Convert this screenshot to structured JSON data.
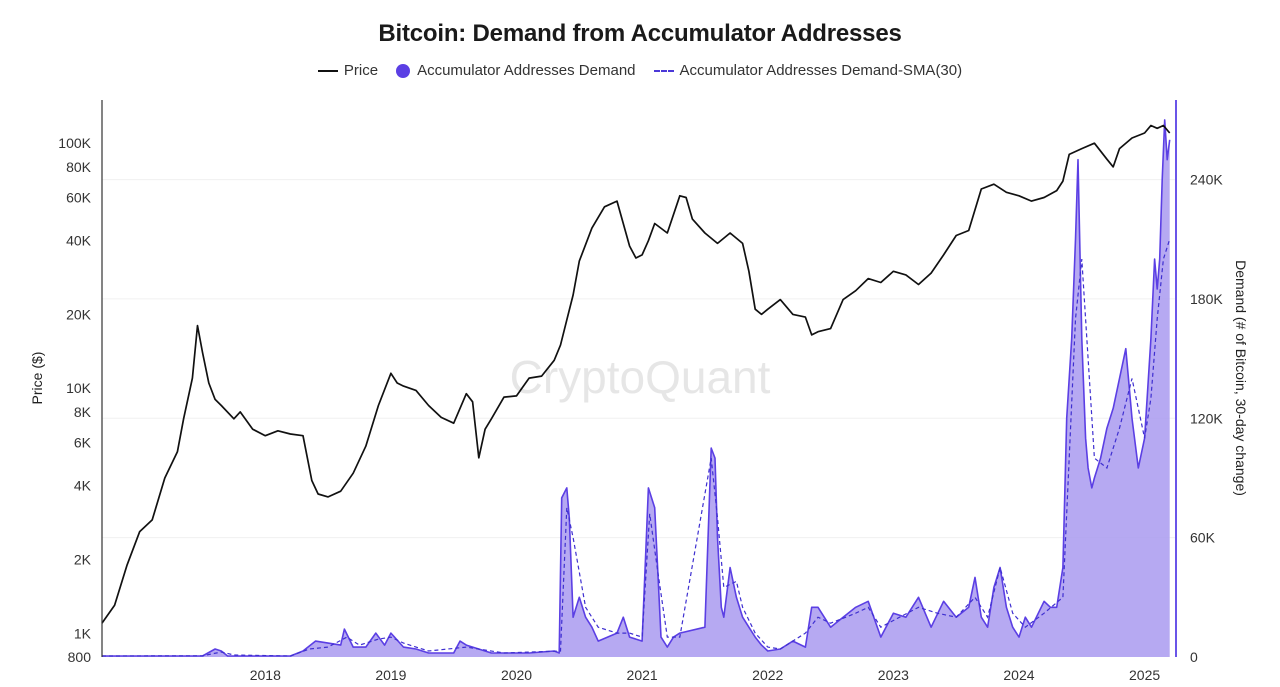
{
  "chart_data": {
    "type": "line",
    "title": "Bitcoin: Demand from Accumulator Addresses",
    "watermark": "CryptoQuant",
    "legend": [
      {
        "name": "Price",
        "style": "solid-line",
        "color": "#111111"
      },
      {
        "name": "Accumulator Addresses Demand",
        "style": "filled-area",
        "color": "#5b3fe4"
      },
      {
        "name": "Accumulator Addresses Demand-SMA(30)",
        "style": "dashed-line",
        "color": "#4b38d8"
      }
    ],
    "legend_position": "top-center",
    "x_axis": {
      "type": "date",
      "range": [
        2017.2,
        2025.75
      ],
      "tick_labels": [
        "2018",
        "2019",
        "2020",
        "2021",
        "2022",
        "2023",
        "2024",
        "2025"
      ]
    },
    "y_left": {
      "label": "Price ($)",
      "scale": "log",
      "range": [
        800,
        150000
      ],
      "ticks": [
        {
          "value": 800,
          "label": "800"
        },
        {
          "value": 1000,
          "label": "1K"
        },
        {
          "value": 2000,
          "label": "2K"
        },
        {
          "value": 4000,
          "label": "4K"
        },
        {
          "value": 6000,
          "label": "6K"
        },
        {
          "value": 8000,
          "label": "8K"
        },
        {
          "value": 10000,
          "label": "10K"
        },
        {
          "value": 20000,
          "label": "20K"
        },
        {
          "value": 40000,
          "label": "40K"
        },
        {
          "value": 60000,
          "label": "60K"
        },
        {
          "value": 80000,
          "label": "80K"
        },
        {
          "value": 100000,
          "label": "100K"
        }
      ]
    },
    "y_right": {
      "label": "Demand (# of Bitcoin, 30-day change)",
      "scale": "linear",
      "range": [
        0,
        280000
      ],
      "ticks": [
        {
          "value": 0,
          "label": "0"
        },
        {
          "value": 60000,
          "label": "60K"
        },
        {
          "value": 120000,
          "label": "120K"
        },
        {
          "value": 180000,
          "label": "180K"
        },
        {
          "value": 240000,
          "label": "240K"
        }
      ]
    },
    "grid": true,
    "series": [
      {
        "name": "Price",
        "axis": "left",
        "x": [
          2017.2,
          2017.3,
          2017.4,
          2017.5,
          2017.6,
          2017.7,
          2017.8,
          2017.85,
          2017.92,
          2017.96,
          2018.0,
          2018.05,
          2018.1,
          2018.15,
          2018.25,
          2018.3,
          2018.4,
          2018.5,
          2018.6,
          2018.7,
          2018.8,
          2018.87,
          2018.92,
          2019.0,
          2019.1,
          2019.2,
          2019.3,
          2019.4,
          2019.5,
          2019.55,
          2019.6,
          2019.7,
          2019.8,
          2019.9,
          2020.0,
          2020.1,
          2020.15,
          2020.2,
          2020.25,
          2020.3,
          2020.4,
          2020.5,
          2020.6,
          2020.7,
          2020.8,
          2020.85,
          2020.9,
          2020.95,
          2021.0,
          2021.1,
          2021.2,
          2021.3,
          2021.4,
          2021.45,
          2021.5,
          2021.55,
          2021.6,
          2021.7,
          2021.8,
          2021.85,
          2021.9,
          2022.0,
          2022.1,
          2022.2,
          2022.3,
          2022.35,
          2022.4,
          2022.45,
          2022.5,
          2022.6,
          2022.7,
          2022.8,
          2022.85,
          2022.9,
          2023.0,
          2023.1,
          2023.2,
          2023.3,
          2023.4,
          2023.5,
          2023.6,
          2023.7,
          2023.8,
          2023.9,
          2024.0,
          2024.1,
          2024.2,
          2024.3,
          2024.4,
          2024.5,
          2024.6,
          2024.7,
          2024.8,
          2024.85,
          2024.9,
          2025.0,
          2025.1,
          2025.2,
          2025.25,
          2025.3,
          2025.4,
          2025.5,
          2025.55,
          2025.6,
          2025.65,
          2025.7
        ],
        "values": [
          1100,
          1300,
          1900,
          2600,
          2900,
          4300,
          5500,
          7500,
          11000,
          18000,
          14000,
          10500,
          9000,
          8500,
          7500,
          8000,
          6800,
          6400,
          6700,
          6500,
          6400,
          4200,
          3700,
          3600,
          3800,
          4500,
          5800,
          8500,
          11500,
          10500,
          10200,
          9800,
          8500,
          7600,
          7200,
          9500,
          8800,
          5200,
          6800,
          7500,
          9200,
          9300,
          11000,
          11200,
          13000,
          15000,
          19000,
          24000,
          33000,
          45000,
          55000,
          58000,
          38000,
          34000,
          35000,
          40000,
          47000,
          43000,
          61000,
          60000,
          49000,
          43000,
          39000,
          43000,
          39000,
          30000,
          21000,
          20000,
          21000,
          23000,
          20000,
          19500,
          16500,
          17000,
          17500,
          23000,
          25000,
          28000,
          27000,
          30000,
          29000,
          26500,
          29500,
          35000,
          42000,
          44000,
          65000,
          68000,
          63000,
          61000,
          58000,
          60000,
          64000,
          70000,
          90000,
          95000,
          100000,
          86000,
          80000,
          95000,
          105000,
          110000,
          118000,
          115000,
          118000,
          110000
        ]
      },
      {
        "name": "Accumulator Addresses Demand",
        "axis": "right",
        "x": [
          2017.2,
          2018.0,
          2018.1,
          2018.15,
          2018.2,
          2018.7,
          2018.8,
          2018.9,
          2019.0,
          2019.1,
          2019.13,
          2019.2,
          2019.3,
          2019.38,
          2019.45,
          2019.5,
          2019.6,
          2019.7,
          2019.8,
          2020.0,
          2020.05,
          2020.1,
          2020.3,
          2020.6,
          2020.8,
          2020.84,
          2020.86,
          2020.9,
          2020.92,
          2020.95,
          2021.0,
          2021.05,
          2021.1,
          2021.15,
          2021.3,
          2021.35,
          2021.4,
          2021.5,
          2021.55,
          2021.6,
          2021.65,
          2021.7,
          2021.75,
          2021.8,
          2022.0,
          2022.05,
          2022.08,
          2022.1,
          2022.13,
          2022.15,
          2022.2,
          2022.25,
          2022.3,
          2022.35,
          2022.4,
          2022.45,
          2022.5,
          2022.6,
          2022.7,
          2022.8,
          2022.85,
          2022.9,
          2023.0,
          2023.1,
          2023.2,
          2023.3,
          2023.4,
          2023.5,
          2023.6,
          2023.7,
          2023.8,
          2023.9,
          2024.0,
          2024.1,
          2024.15,
          2024.2,
          2024.25,
          2024.3,
          2024.35,
          2024.4,
          2024.45,
          2024.5,
          2024.55,
          2024.6,
          2024.7,
          2024.75,
          2024.8,
          2024.85,
          2024.88,
          2024.92,
          2024.95,
          2024.97,
          2025.0,
          2025.03,
          2025.05,
          2025.08,
          2025.1,
          2025.15,
          2025.2,
          2025.25,
          2025.3,
          2025.35,
          2025.4,
          2025.45,
          2025.5,
          2025.55,
          2025.58,
          2025.6,
          2025.62,
          2025.64,
          2025.66,
          2025.68,
          2025.7
        ],
        "values": [
          500,
          500,
          4000,
          3000,
          500,
          500,
          3000,
          8000,
          7000,
          6000,
          14000,
          5000,
          5000,
          12000,
          6000,
          12000,
          5000,
          4000,
          2000,
          2000,
          8000,
          6000,
          2000,
          2000,
          3000,
          2000,
          80000,
          85000,
          70000,
          20000,
          30000,
          20000,
          15000,
          8000,
          12000,
          20000,
          10000,
          8000,
          85000,
          75000,
          10000,
          5000,
          10000,
          12000,
          15000,
          105000,
          100000,
          60000,
          25000,
          20000,
          45000,
          30000,
          20000,
          15000,
          10000,
          6000,
          3000,
          4000,
          8000,
          5000,
          25000,
          25000,
          15000,
          20000,
          25000,
          28000,
          10000,
          22000,
          20000,
          30000,
          15000,
          28000,
          20000,
          25000,
          40000,
          20000,
          15000,
          35000,
          45000,
          25000,
          15000,
          10000,
          20000,
          15000,
          28000,
          25000,
          25000,
          45000,
          120000,
          160000,
          210000,
          250000,
          160000,
          110000,
          95000,
          85000,
          90000,
          100000,
          115000,
          125000,
          140000,
          155000,
          120000,
          95000,
          110000,
          160000,
          200000,
          185000,
          200000,
          240000,
          270000,
          250000,
          260000
        ]
      },
      {
        "name": "Accumulator Addresses Demand-SMA(30)",
        "axis": "right",
        "x": [
          2017.2,
          2018.0,
          2018.15,
          2018.25,
          2018.7,
          2018.85,
          2019.0,
          2019.15,
          2019.25,
          2019.4,
          2019.5,
          2019.6,
          2019.8,
          2020.1,
          2020.4,
          2020.85,
          2020.9,
          2020.95,
          2021.05,
          2021.15,
          2021.3,
          2021.4,
          2021.5,
          2021.56,
          2021.62,
          2021.7,
          2021.8,
          2022.05,
          2022.1,
          2022.15,
          2022.25,
          2022.3,
          2022.4,
          2022.5,
          2022.6,
          2022.8,
          2022.9,
          2023.0,
          2023.2,
          2023.3,
          2023.4,
          2023.55,
          2023.7,
          2023.85,
          2024.0,
          2024.15,
          2024.25,
          2024.35,
          2024.45,
          2024.55,
          2024.7,
          2024.85,
          2024.9,
          2024.95,
          2025.0,
          2025.05,
          2025.1,
          2025.2,
          2025.3,
          2025.4,
          2025.5,
          2025.55,
          2025.6,
          2025.65,
          2025.7
        ],
        "values": [
          500,
          600,
          2500,
          1000,
          500,
          4000,
          5000,
          10000,
          6000,
          9000,
          10000,
          7000,
          3000,
          5000,
          2000,
          3000,
          75000,
          60000,
          25000,
          15000,
          12000,
          12000,
          10000,
          72000,
          45000,
          10000,
          10000,
          100000,
          70000,
          35000,
          38000,
          25000,
          12000,
          5000,
          4000,
          12000,
          20000,
          17000,
          22000,
          25000,
          15000,
          20000,
          25000,
          22000,
          20000,
          30000,
          20000,
          45000,
          22000,
          15000,
          22000,
          30000,
          100000,
          170000,
          200000,
          150000,
          100000,
          95000,
          115000,
          140000,
          110000,
          130000,
          170000,
          200000,
          210000
        ]
      }
    ]
  }
}
